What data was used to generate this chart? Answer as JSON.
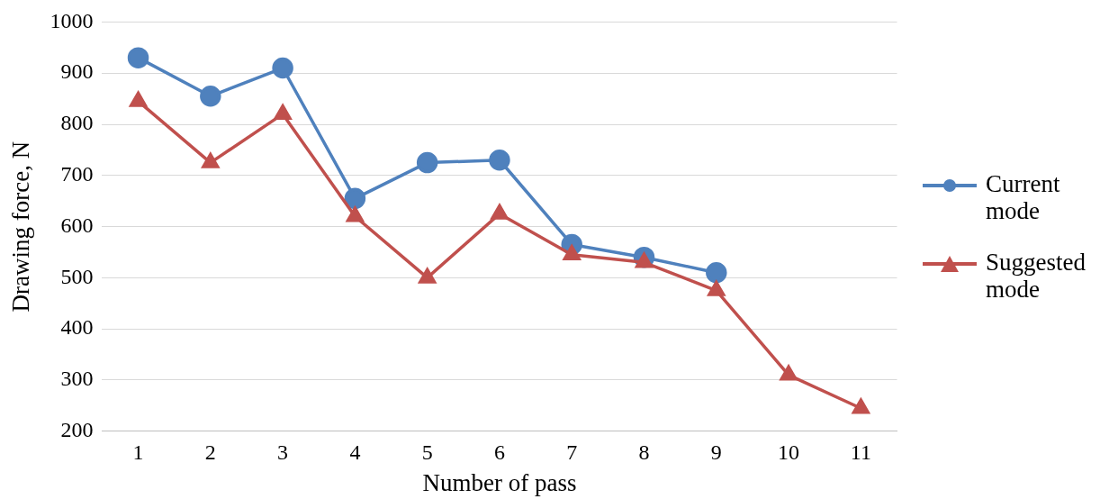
{
  "chart_data": {
    "type": "line",
    "xlabel": "Number of pass",
    "ylabel": "Drawing force, N",
    "categories": [
      "1",
      "2",
      "3",
      "4",
      "5",
      "6",
      "7",
      "8",
      "9",
      "10",
      "11"
    ],
    "series": [
      {
        "name": "Current mode",
        "color": "#4f81bd",
        "marker": "circle",
        "values": [
          930,
          855,
          910,
          655,
          725,
          730,
          565,
          540,
          510,
          null,
          null
        ]
      },
      {
        "name": "Suggested mode",
        "color": "#c0504d",
        "marker": "triangle",
        "values": [
          845,
          725,
          820,
          620,
          500,
          625,
          545,
          530,
          475,
          310,
          245
        ]
      }
    ],
    "ylim": [
      200,
      1000
    ],
    "yticks": [
      200,
      300,
      400,
      500,
      600,
      700,
      800,
      900,
      1000
    ],
    "grid": "y",
    "legend": "right"
  }
}
